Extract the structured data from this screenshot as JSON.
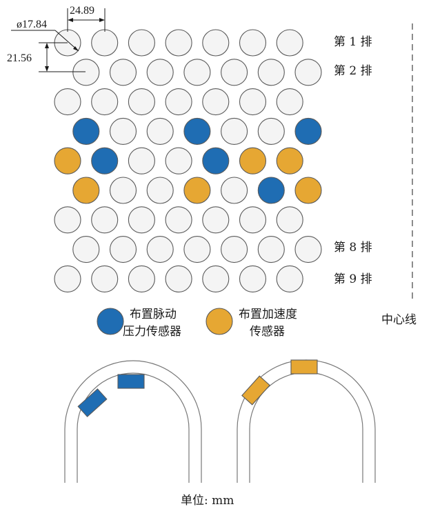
{
  "colors": {
    "empty": "#f4f4f4",
    "pressure": "#1f6db3",
    "accel": "#e6a733",
    "outline": "#5a5a5a"
  },
  "dimensions": {
    "diameter": "ø17.84",
    "pitch": "24.89",
    "row_spacing": "21.56"
  },
  "rows": [
    {
      "label": "第 1 排",
      "tubes": [
        "empty",
        "empty",
        "empty",
        "empty",
        "empty",
        "empty",
        "empty"
      ]
    },
    {
      "label": "第 2 排",
      "tubes": [
        "empty",
        "empty",
        "empty",
        "empty",
        "empty",
        "empty",
        "empty"
      ]
    },
    {
      "label": "",
      "tubes": [
        "empty",
        "empty",
        "empty",
        "empty",
        "empty",
        "empty",
        "empty"
      ]
    },
    {
      "label": "",
      "tubes": [
        "pressure",
        "empty",
        "empty",
        "pressure",
        "empty",
        "empty",
        "pressure"
      ]
    },
    {
      "label": "",
      "tubes": [
        "accel",
        "pressure",
        "empty",
        "empty",
        "pressure",
        "accel",
        "accel"
      ]
    },
    {
      "label": "",
      "tubes": [
        "accel",
        "empty",
        "empty",
        "accel",
        "empty",
        "pressure",
        "accel"
      ]
    },
    {
      "label": "",
      "tubes": [
        "empty",
        "empty",
        "empty",
        "empty",
        "empty",
        "empty",
        "empty"
      ]
    },
    {
      "label": "第 8 排",
      "tubes": [
        "empty",
        "empty",
        "empty",
        "empty",
        "empty",
        "empty",
        "empty"
      ]
    },
    {
      "label": "第 9 排",
      "tubes": [
        "empty",
        "empty",
        "empty",
        "empty",
        "empty",
        "empty",
        "empty"
      ]
    }
  ],
  "legend": {
    "pressure_line1": "布置脉动",
    "pressure_line2": "压力传感器",
    "accel_line1": "布置加速度",
    "accel_line2": "传感器"
  },
  "centerline_label": "中心线",
  "unit_label": "单位: mm"
}
